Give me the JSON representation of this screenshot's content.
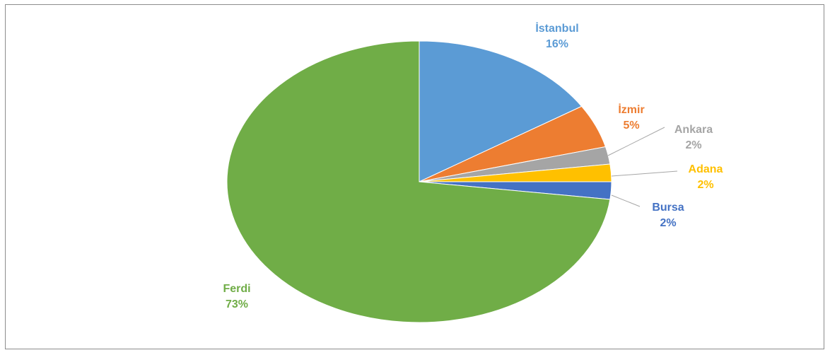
{
  "chart_data": {
    "type": "pie",
    "slices": [
      {
        "label": "İstanbul",
        "pct_label": "16%",
        "value": 16,
        "color": "#5B9BD5"
      },
      {
        "label": "İzmir",
        "pct_label": "5%",
        "value": 5,
        "color": "#ED7D31"
      },
      {
        "label": "Ankara",
        "pct_label": "2%",
        "value": 2,
        "color": "#A5A5A5"
      },
      {
        "label": "Adana",
        "pct_label": "2%",
        "value": 2,
        "color": "#FFC000"
      },
      {
        "label": "Bursa",
        "pct_label": "2%",
        "value": 2,
        "color": "#4472C4"
      },
      {
        "label": "Ferdi",
        "pct_label": "73%",
        "value": 73,
        "color": "#70AD47"
      }
    ],
    "start_angle": "12 o'clock",
    "direction": "clockwise",
    "legend": "none"
  }
}
